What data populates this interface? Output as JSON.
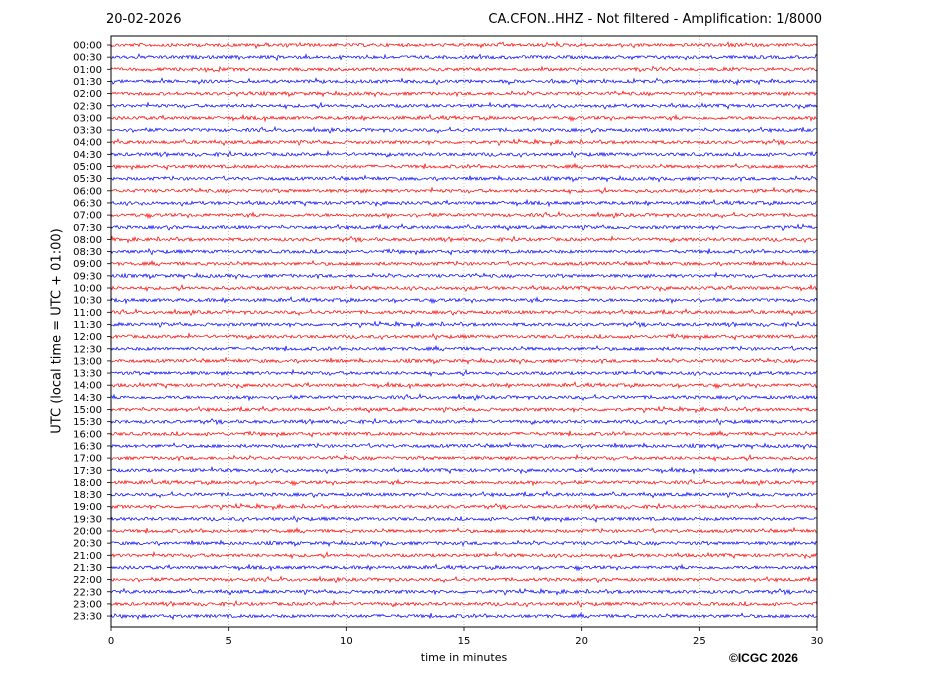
{
  "header": {
    "date": "20-02-2026",
    "title": "CA.CFON..HHZ - Not filtered - Amplification: 1/8000"
  },
  "footer": {
    "copyright": "©ICGC 2026"
  },
  "chart_data": {
    "type": "line",
    "title": "CA.CFON..HHZ - Not filtered - Amplification: 1/8000",
    "xlabel": "time in minutes",
    "ylabel": "UTC (local time = UTC + 01:00)",
    "xlim": [
      0,
      30
    ],
    "xticks": [
      0,
      5,
      10,
      15,
      20,
      25,
      30
    ],
    "grid": "vertical dotted lines at x ticks",
    "rows": [
      "00:00",
      "00:30",
      "01:00",
      "01:30",
      "02:00",
      "02:30",
      "03:00",
      "03:30",
      "04:00",
      "04:30",
      "05:00",
      "05:30",
      "06:00",
      "06:30",
      "07:00",
      "07:30",
      "08:00",
      "08:30",
      "09:00",
      "09:30",
      "10:00",
      "10:30",
      "11:00",
      "11:30",
      "12:00",
      "12:30",
      "13:00",
      "13:30",
      "14:00",
      "14:30",
      "15:00",
      "15:30",
      "16:00",
      "16:30",
      "17:00",
      "17:30",
      "18:00",
      "18:30",
      "19:00",
      "19:30",
      "20:00",
      "20:30",
      "21:00",
      "21:30",
      "22:00",
      "22:30",
      "23:00",
      "23:30"
    ],
    "row_colors": [
      "#ff0000",
      "#0000ff"
    ]
  }
}
